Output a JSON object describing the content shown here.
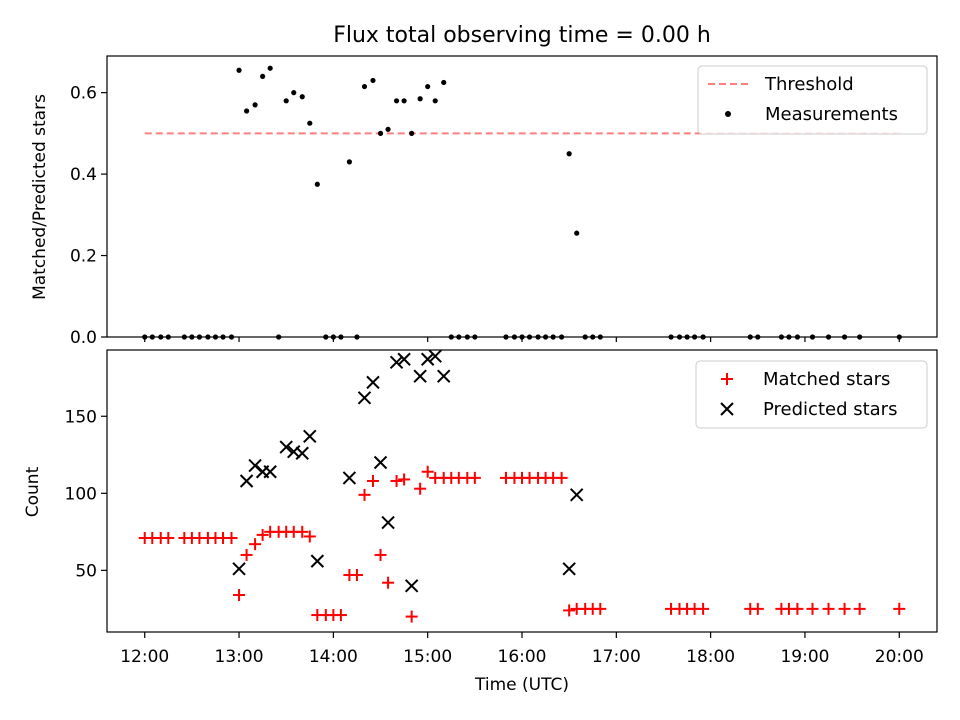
{
  "figure": {
    "title": "Flux total observing time = 0.00 h"
  },
  "chart_data": [
    {
      "type": "scatter",
      "ylabel": "Matched/Predicted stars",
      "xlim": [
        11.6,
        20.4
      ],
      "ylim": [
        0,
        0.69
      ],
      "yticks": [
        0.0,
        0.2,
        0.4,
        0.6
      ],
      "ytick_labels": [
        "0.0",
        "0.2",
        "0.4",
        "0.6"
      ],
      "threshold": {
        "name": "Threshold",
        "value": 0.5,
        "x_range": [
          12.0,
          20.0
        ],
        "color": "#ff7f7f",
        "style": "dashed"
      },
      "legend": {
        "placement": "top-right",
        "entries": [
          "Threshold",
          "Measurements"
        ]
      },
      "series": [
        {
          "name": "Measurements",
          "color": "#000000",
          "marker": "dot",
          "x": [
            12.0,
            12.08,
            12.17,
            12.25,
            12.42,
            12.5,
            12.58,
            12.67,
            12.75,
            12.83,
            12.92,
            13.0,
            13.08,
            13.17,
            13.25,
            13.33,
            13.42,
            13.5,
            13.58,
            13.67,
            13.75,
            13.83,
            13.92,
            14.0,
            14.08,
            14.17,
            14.25,
            14.33,
            14.42,
            14.5,
            14.58,
            14.67,
            14.75,
            14.83,
            14.92,
            15.0,
            15.08,
            15.17,
            15.25,
            15.33,
            15.42,
            15.5,
            15.83,
            15.92,
            16.0,
            16.08,
            16.17,
            16.25,
            16.33,
            16.42,
            16.5,
            16.58,
            16.67,
            16.75,
            16.83,
            17.58,
            17.67,
            17.75,
            17.83,
            17.92,
            18.42,
            18.5,
            18.75,
            18.83,
            18.92,
            19.08,
            19.25,
            19.42,
            19.58,
            20.0
          ],
          "y": [
            0,
            0,
            0,
            0,
            0,
            0,
            0,
            0,
            0,
            0,
            0,
            0.655,
            0.555,
            0.57,
            0.64,
            0.66,
            0,
            0.58,
            0.6,
            0.59,
            0.525,
            0.375,
            0,
            0,
            0,
            0.43,
            0,
            0.615,
            0.63,
            0.5,
            0.51,
            0.58,
            0.58,
            0.5,
            0.585,
            0.615,
            0.58,
            0.625,
            0,
            0,
            0,
            0,
            0,
            0,
            0,
            0,
            0,
            0,
            0,
            0,
            0.45,
            0.255,
            0,
            0,
            0,
            0,
            0,
            0,
            0,
            0,
            0,
            0,
            0,
            0,
            0,
            0,
            0,
            0,
            0,
            0
          ]
        }
      ]
    },
    {
      "type": "scatter",
      "xlabel": "Time (UTC)",
      "ylabel": "Count",
      "xlim": [
        11.6,
        20.4
      ],
      "ylim": [
        10,
        193
      ],
      "xticks": [
        12,
        13,
        14,
        15,
        16,
        17,
        18,
        19,
        20
      ],
      "xtick_labels": [
        "12:00",
        "13:00",
        "14:00",
        "15:00",
        "16:00",
        "17:00",
        "18:00",
        "19:00",
        "20:00"
      ],
      "yticks": [
        50,
        100,
        150
      ],
      "ytick_labels": [
        "50",
        "100",
        "150"
      ],
      "legend": {
        "placement": "top-right",
        "entries": [
          "Matched stars",
          "Predicted stars"
        ]
      },
      "series": [
        {
          "name": "Matched stars",
          "color": "#ff0000",
          "marker": "plus",
          "x": [
            12.0,
            12.08,
            12.17,
            12.25,
            12.42,
            12.5,
            12.58,
            12.67,
            12.75,
            12.83,
            12.92,
            13.0,
            13.08,
            13.17,
            13.25,
            13.33,
            13.42,
            13.5,
            13.58,
            13.67,
            13.75,
            13.83,
            13.92,
            14.0,
            14.08,
            14.17,
            14.25,
            14.33,
            14.42,
            14.5,
            14.58,
            14.67,
            14.75,
            14.83,
            14.92,
            15.0,
            15.08,
            15.17,
            15.25,
            15.33,
            15.42,
            15.5,
            15.83,
            15.92,
            16.0,
            16.08,
            16.17,
            16.25,
            16.33,
            16.42,
            16.5,
            16.58,
            16.67,
            16.75,
            16.83,
            17.58,
            17.67,
            17.75,
            17.83,
            17.92,
            18.42,
            18.5,
            18.75,
            18.83,
            18.92,
            19.08,
            19.25,
            19.42,
            19.58,
            20.0
          ],
          "y": [
            71,
            71,
            71,
            71,
            71,
            71,
            71,
            71,
            71,
            71,
            71,
            34,
            60,
            67,
            73,
            75,
            75,
            75,
            75,
            75,
            72,
            21,
            21,
            21,
            21,
            47,
            47,
            99,
            108,
            60,
            42,
            108,
            109,
            20,
            103,
            114,
            110,
            110,
            110,
            110,
            110,
            110,
            110,
            110,
            110,
            110,
            110,
            110,
            110,
            110,
            24,
            25,
            25,
            25,
            25,
            25,
            25,
            25,
            25,
            25,
            25,
            25,
            25,
            25,
            25,
            25,
            25,
            25,
            25,
            25
          ]
        },
        {
          "name": "Predicted stars",
          "color": "#000000",
          "marker": "x",
          "x": [
            13.0,
            13.08,
            13.17,
            13.25,
            13.33,
            13.5,
            13.58,
            13.67,
            13.75,
            13.83,
            14.17,
            14.33,
            14.42,
            14.5,
            14.58,
            14.67,
            14.75,
            14.83,
            14.92,
            15.0,
            15.08,
            15.17,
            16.5,
            16.58
          ],
          "y": [
            51,
            108,
            118,
            114,
            114,
            130,
            127,
            126,
            137,
            56,
            110,
            162,
            172,
            120,
            81,
            185,
            187,
            40,
            176,
            187,
            189,
            176,
            51,
            99
          ]
        }
      ]
    }
  ]
}
